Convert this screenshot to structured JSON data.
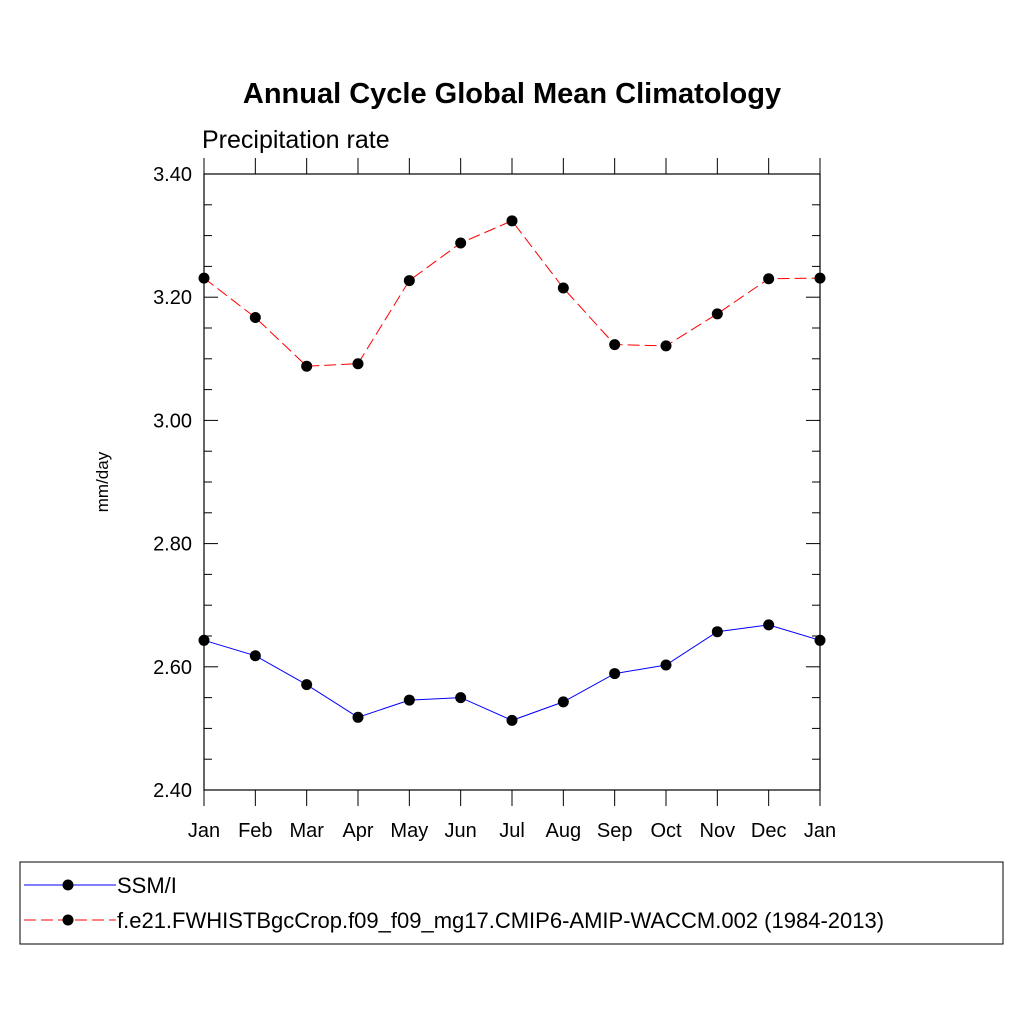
{
  "chart_data": {
    "type": "line",
    "title": "Annual Cycle Global Mean Climatology",
    "subtitle": "Precipitation rate",
    "xlabel": "",
    "ylabel": "mm/day",
    "categories": [
      "Jan",
      "Feb",
      "Mar",
      "Apr",
      "May",
      "Jun",
      "Jul",
      "Aug",
      "Sep",
      "Oct",
      "Nov",
      "Dec",
      "Jan"
    ],
    "ylim": [
      2.4,
      3.4
    ],
    "yticks": [
      2.4,
      2.6,
      2.8,
      3.0,
      3.2,
      3.4
    ],
    "ytick_labels": [
      "2.40",
      "2.60",
      "2.80",
      "3.00",
      "3.20",
      "3.40"
    ],
    "grid": false,
    "legend_position": "bottom",
    "series": [
      {
        "name": "SSM/I",
        "color": "#0000ff",
        "dash": "solid",
        "values": [
          2.643,
          2.618,
          2.571,
          2.518,
          2.546,
          2.55,
          2.513,
          2.543,
          2.589,
          2.603,
          2.657,
          2.668,
          2.643
        ]
      },
      {
        "name": "f.e21.FWHISTBgcCrop.f09_f09_mg17.CMIP6-AMIP-WACCM.002 (1984-2013)",
        "color": "#ff0000",
        "dash": "dashed",
        "values": [
          3.231,
          3.167,
          3.088,
          3.092,
          3.227,
          3.288,
          3.324,
          3.215,
          3.123,
          3.121,
          3.173,
          3.23,
          3.231
        ]
      }
    ]
  }
}
